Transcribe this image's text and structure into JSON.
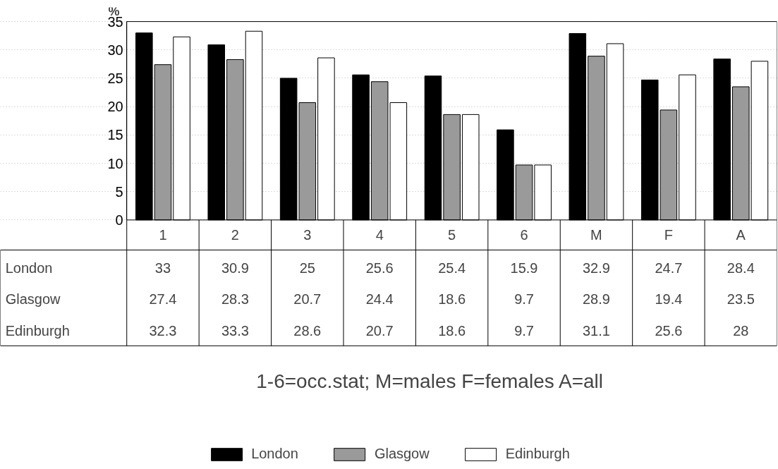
{
  "chart_data": {
    "type": "bar",
    "ylabel": "%",
    "categories": [
      "1",
      "2",
      "3",
      "4",
      "5",
      "6",
      "M",
      "F",
      "A"
    ],
    "series": [
      {
        "name": "London",
        "color": "#000000",
        "values": [
          33,
          30.9,
          25,
          25.6,
          25.4,
          15.9,
          32.9,
          24.7,
          28.4
        ]
      },
      {
        "name": "Glasgow",
        "color": "#9a9a9a",
        "values": [
          27.4,
          28.3,
          20.7,
          24.4,
          18.6,
          9.7,
          28.9,
          19.4,
          23.5
        ]
      },
      {
        "name": "Edinburgh",
        "color": "#ffffff",
        "values": [
          32.3,
          33.3,
          28.6,
          20.7,
          18.6,
          9.7,
          31.1,
          25.6,
          28
        ]
      }
    ],
    "ylim": [
      0,
      35
    ],
    "yticks": [
      0,
      5,
      10,
      15,
      20,
      25,
      30,
      35
    ],
    "grid": "y",
    "data_labels": true,
    "legend": "bottom",
    "annotations": [
      "1-6=occ.stat; M=males F=females A=all"
    ]
  }
}
